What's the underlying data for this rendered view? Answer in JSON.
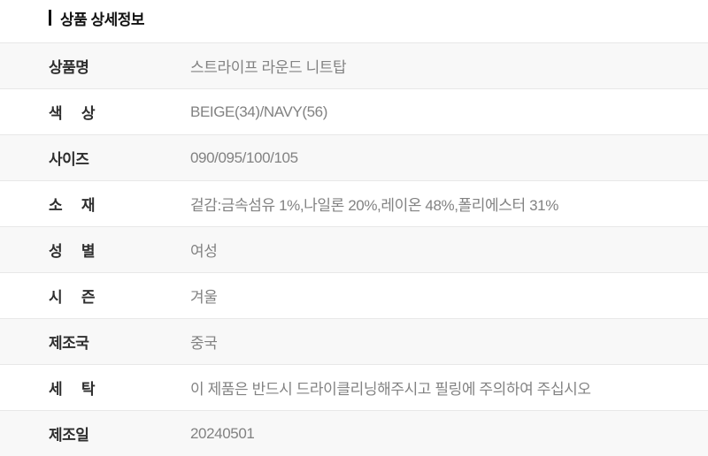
{
  "section": {
    "title": "상품 상세정보"
  },
  "table": {
    "rows": [
      {
        "label": "상품명",
        "value": "스트라이프 라운드 니트탑"
      },
      {
        "label": "색 상",
        "value": "BEIGE(34)/NAVY(56)"
      },
      {
        "label": "사이즈",
        "value": "090/095/100/105"
      },
      {
        "label": "소 재",
        "value": "겉감:금속섬유 1%,나일론 20%,레이온 48%,폴리에스터 31%"
      },
      {
        "label": "성 별",
        "value": "여성"
      },
      {
        "label": "시 즌",
        "value": "겨울"
      },
      {
        "label": "제조국",
        "value": "중국"
      },
      {
        "label": "세 탁",
        "value": "이 제품은 반드시 드라이클리닝해주시고 필링에 주의하여 주십시오"
      },
      {
        "label": "제조일",
        "value": "20240501"
      }
    ]
  },
  "colors": {
    "row_alt_bg": "#f8f8f8",
    "separator": "#e8e8e8",
    "label_text": "#2e2e2e",
    "value_text": "#828282",
    "title_text": "#111111"
  }
}
